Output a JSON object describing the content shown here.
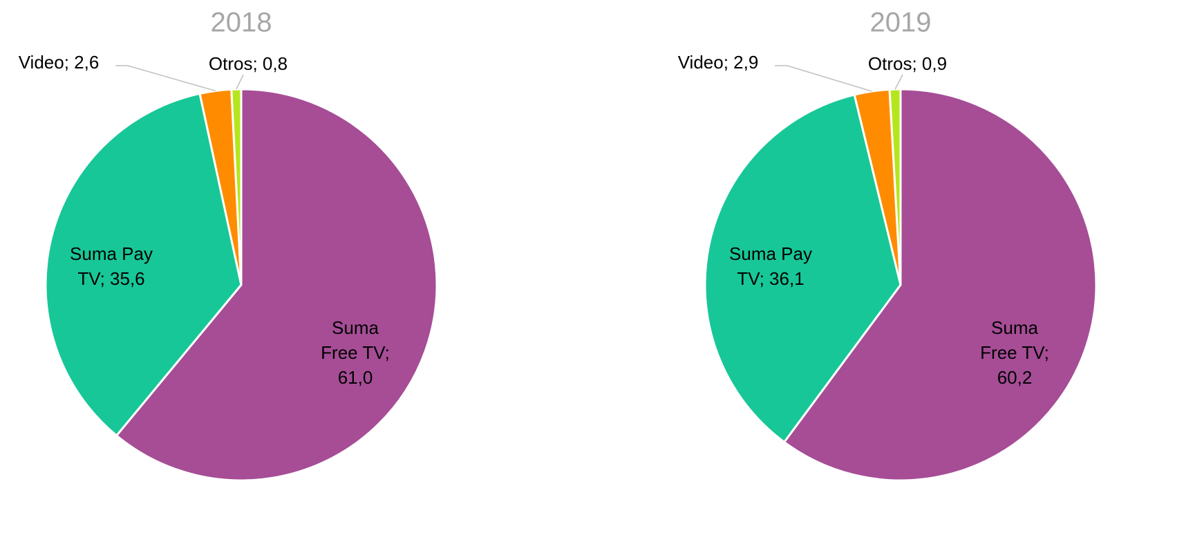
{
  "chart_data": [
    {
      "type": "pie",
      "title": "2018",
      "values": [
        61.0,
        35.6,
        2.6,
        0.8
      ],
      "value_labels": [
        "Suma\nFree TV;\n61,0",
        "Suma Pay\nTV; 35,6",
        "Video; 2,6",
        "Otros; 0,8"
      ],
      "colors": [
        "#a64d96",
        "#17c797",
        "#ff8c00",
        "#b5e61d"
      ]
    },
    {
      "type": "pie",
      "title": "2019",
      "values": [
        60.2,
        36.1,
        2.9,
        0.9
      ],
      "value_labels": [
        "Suma\nFree TV;\n60,2",
        "Suma Pay\nTV; 36,1",
        "Video; 2,9",
        "Otros; 0,9"
      ],
      "colors": [
        "#a64d96",
        "#17c797",
        "#ff8c00",
        "#b5e61d"
      ]
    }
  ]
}
